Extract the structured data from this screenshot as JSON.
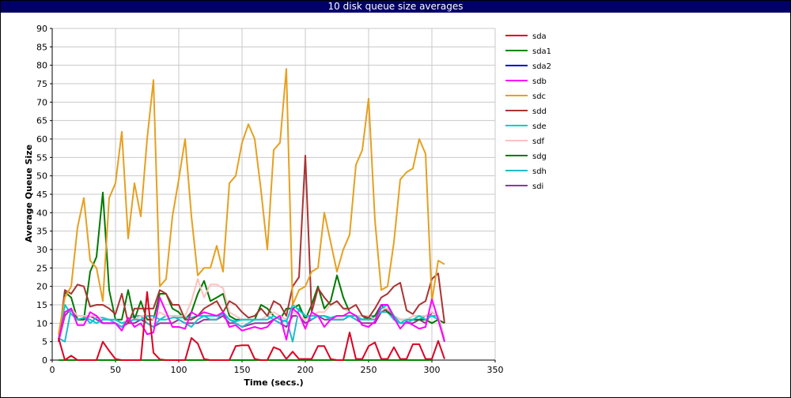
{
  "window": {
    "title": "10 disk queue size averages"
  },
  "chart_data": {
    "type": "line",
    "title": "10 disk queue size averages",
    "xlabel": "Time (secs.)",
    "ylabel": "Average Queue Size",
    "xlim": [
      0,
      350
    ],
    "ylim": [
      0,
      90
    ],
    "xticks": [
      0,
      50,
      100,
      150,
      200,
      250,
      300,
      350
    ],
    "yticks": [
      0,
      5,
      10,
      15,
      20,
      25,
      30,
      35,
      40,
      45,
      50,
      55,
      60,
      65,
      70,
      75,
      80,
      85,
      90
    ],
    "grid": true,
    "legend_position": "right",
    "series": [
      {
        "name": "sda",
        "color": "#dd0022",
        "x": [
          5,
          10,
          15,
          20,
          25,
          30,
          35,
          40,
          45,
          50,
          55,
          60,
          65,
          70,
          75,
          80,
          85,
          90,
          95,
          100,
          105,
          110,
          115,
          120,
          125,
          130,
          135,
          140,
          145,
          150,
          155,
          160,
          165,
          170,
          175,
          180,
          185,
          190,
          195,
          200,
          205,
          210,
          215,
          220,
          225,
          230,
          235,
          240,
          245,
          250,
          255,
          260,
          265,
          270,
          275,
          280,
          285,
          290,
          295,
          300,
          305,
          310
        ],
        "y": [
          6,
          0,
          1.2,
          0,
          0,
          0,
          0,
          5,
          2.5,
          0.3,
          0,
          0,
          0,
          0,
          18.5,
          2,
          0.2,
          0,
          0,
          0,
          0,
          6,
          4.5,
          0.3,
          0,
          0,
          0,
          0,
          3.8,
          4,
          4,
          0.3,
          0,
          0,
          3.5,
          2.8,
          0.3,
          2.3,
          0.3,
          0.3,
          0.3,
          3.8,
          3.8,
          0.3,
          0,
          0,
          7.5,
          0.3,
          0.3,
          3.8,
          4.8,
          0.3,
          0.3,
          3.5,
          0.3,
          0.3,
          4.3,
          4.3,
          0.3,
          0.3,
          5.2,
          0.3
        ]
      },
      {
        "name": "sda1",
        "color": "#008800",
        "x": [
          5,
          300
        ],
        "y": [
          0,
          0
        ]
      },
      {
        "name": "sda2",
        "color": "#0000cc",
        "x": [
          5,
          300
        ],
        "y": [
          0,
          0
        ]
      },
      {
        "name": "sdb",
        "color": "#ff00ff",
        "x": [
          5,
          10,
          15,
          20,
          25,
          30,
          35,
          40,
          45,
          50,
          55,
          60,
          65,
          70,
          75,
          80,
          85,
          90,
          95,
          100,
          105,
          110,
          115,
          120,
          125,
          130,
          135,
          140,
          145,
          150,
          155,
          160,
          165,
          170,
          175,
          180,
          185,
          190,
          195,
          200,
          205,
          210,
          215,
          220,
          225,
          230,
          235,
          240,
          245,
          250,
          255,
          260,
          265,
          270,
          275,
          280,
          285,
          290,
          295,
          300,
          305,
          310
        ],
        "y": [
          5,
          13,
          14,
          9.5,
          9.5,
          13,
          12,
          10,
          10,
          10,
          8,
          11.5,
          9,
          10,
          7,
          7.5,
          17,
          13,
          9,
          9,
          8.5,
          13,
          12,
          13,
          12.5,
          12,
          13,
          9,
          9.5,
          8,
          8.5,
          9,
          8.5,
          9,
          11,
          12,
          5.5,
          14,
          12.5,
          8.5,
          13,
          12,
          9,
          11,
          12,
          12,
          13,
          12,
          9.5,
          9,
          10.5,
          15,
          15,
          11.5,
          8.5,
          10.5,
          9.5,
          8.5,
          9,
          16.5,
          11,
          5
        ]
      },
      {
        "name": "sdc",
        "color": "#e6a020",
        "x": [
          5,
          10,
          15,
          20,
          25,
          30,
          35,
          40,
          45,
          50,
          55,
          60,
          65,
          70,
          75,
          80,
          85,
          90,
          95,
          100,
          105,
          110,
          115,
          120,
          125,
          130,
          135,
          140,
          145,
          150,
          155,
          160,
          165,
          170,
          175,
          180,
          185,
          190,
          195,
          200,
          205,
          210,
          215,
          220,
          225,
          230,
          235,
          240,
          245,
          250,
          255,
          260,
          265,
          270,
          275,
          280,
          285,
          290,
          295,
          300,
          305,
          310
        ],
        "y": [
          7,
          17,
          20,
          36,
          44,
          27,
          25,
          16,
          44,
          48,
          62,
          33,
          48,
          39,
          60,
          76,
          20,
          22,
          39,
          49,
          60,
          39,
          23,
          25,
          25,
          31,
          24,
          48,
          50,
          59,
          64,
          60,
          46,
          30,
          57,
          59,
          79,
          15,
          19,
          20,
          24,
          25,
          40,
          32,
          24,
          30,
          34,
          53,
          57,
          71,
          38,
          19,
          20,
          32,
          49,
          51,
          52,
          60,
          56,
          16,
          27,
          26
        ]
      },
      {
        "name": "sdd",
        "color": "#aa3333",
        "x": [
          5,
          10,
          15,
          20,
          25,
          30,
          35,
          40,
          45,
          50,
          55,
          60,
          65,
          70,
          75,
          80,
          85,
          90,
          95,
          100,
          105,
          110,
          115,
          120,
          125,
          130,
          135,
          140,
          145,
          150,
          155,
          160,
          165,
          170,
          175,
          180,
          185,
          190,
          195,
          200,
          205,
          210,
          215,
          220,
          225,
          230,
          235,
          240,
          245,
          250,
          255,
          260,
          265,
          270,
          275,
          280,
          285,
          290,
          295,
          300,
          305,
          310
        ],
        "y": [
          5,
          19,
          18,
          20.5,
          20,
          14.5,
          15,
          15,
          14,
          12.5,
          18,
          10,
          14,
          14,
          14,
          14,
          19,
          18,
          15,
          15,
          11,
          11,
          12,
          14,
          15,
          16,
          13,
          16,
          15,
          13,
          11.5,
          12,
          14,
          12,
          16,
          15,
          12,
          20,
          22.5,
          55.5,
          13,
          19.5,
          17,
          15,
          16,
          14,
          14,
          15,
          12,
          11.5,
          14,
          17,
          18,
          20,
          21,
          13.5,
          12.5,
          15,
          16,
          22,
          23.5,
          10
        ]
      },
      {
        "name": "sde",
        "color": "#00cccc",
        "x": [
          5,
          10,
          15,
          20,
          25,
          30,
          35,
          40,
          45,
          50,
          55,
          60,
          65,
          70,
          75,
          80,
          85,
          90,
          95,
          100,
          105,
          110,
          115,
          120,
          125,
          130,
          135,
          140,
          145,
          150,
          155,
          160,
          165,
          170,
          175,
          180,
          185,
          190,
          195,
          200,
          205,
          210,
          215,
          220,
          225,
          230,
          235,
          240,
          245,
          250,
          255,
          260,
          265,
          270,
          275,
          280,
          285,
          290,
          295,
          300,
          305,
          310
        ],
        "y": [
          5,
          15,
          12.5,
          11,
          11.5,
          11,
          10,
          11,
          11,
          11,
          10,
          10.5,
          11,
          11,
          12,
          12,
          11,
          11,
          11.5,
          11.5,
          11.5,
          11.5,
          12,
          12,
          12,
          12,
          12.5,
          11,
          10.5,
          11,
          11,
          11,
          11,
          11,
          12,
          11,
          10.5,
          15,
          13.5,
          12,
          12,
          12,
          12,
          11.5,
          12,
          12,
          12,
          12,
          11,
          11,
          11,
          14,
          15,
          12,
          10,
          11,
          11,
          12,
          11,
          12,
          11,
          5
        ]
      },
      {
        "name": "sdf",
        "color": "#ffc0c0",
        "x": [
          5,
          10,
          15,
          20,
          25,
          30,
          35,
          40,
          45,
          50,
          55,
          60,
          65,
          70,
          75,
          80,
          85,
          90,
          95,
          100,
          105,
          110,
          115,
          120,
          125,
          130,
          135,
          140,
          145,
          150,
          155,
          160,
          165,
          170,
          175,
          180,
          185,
          190,
          195,
          200,
          205,
          210,
          215,
          220,
          225,
          230,
          235,
          240,
          245,
          250,
          255,
          260,
          265,
          270,
          275,
          280,
          285,
          290,
          295,
          300,
          305,
          310
        ],
        "y": [
          5,
          13,
          14,
          12,
          12,
          12,
          12,
          11,
          11,
          11,
          10,
          11,
          11,
          12,
          12,
          11,
          13,
          12,
          12,
          12,
          12,
          16,
          22,
          17,
          20.5,
          20.5,
          19.5,
          13,
          12,
          11,
          11,
          11,
          11,
          12,
          13,
          12,
          11,
          13,
          12,
          11,
          12,
          13,
          13,
          15,
          16,
          14,
          13,
          12,
          12,
          12,
          11,
          14,
          14,
          12,
          11,
          11,
          12,
          12,
          12,
          13,
          12,
          6
        ]
      },
      {
        "name": "sdg",
        "color": "#007a00",
        "x": [
          5,
          10,
          15,
          20,
          25,
          30,
          35,
          40,
          45,
          50,
          55,
          60,
          65,
          70,
          75,
          80,
          85,
          90,
          95,
          100,
          105,
          110,
          115,
          120,
          125,
          130,
          135,
          140,
          145,
          150,
          155,
          160,
          165,
          170,
          175,
          180,
          185,
          190,
          195,
          200,
          205,
          210,
          215,
          220,
          225,
          230,
          235,
          240,
          245,
          250,
          255,
          260,
          265,
          270,
          275,
          280,
          285,
          290,
          295,
          300,
          305,
          310
        ],
        "y": [
          5,
          18.5,
          17,
          11,
          11,
          24,
          28,
          45.5,
          19,
          11,
          11,
          19,
          11,
          16,
          11,
          11,
          18,
          18,
          14,
          13,
          11,
          13,
          18,
          21.5,
          16,
          17,
          18,
          12,
          11,
          11,
          11,
          11,
          15,
          14,
          12,
          11,
          14,
          14,
          15,
          11,
          15,
          20,
          14,
          16,
          23,
          17,
          13,
          12,
          12,
          11,
          12,
          15,
          13,
          12,
          11,
          11,
          11,
          11,
          11,
          10,
          11,
          10
        ]
      },
      {
        "name": "sdh",
        "color": "#22bbcc",
        "x": [
          5,
          10,
          15,
          20,
          25,
          30,
          35,
          40,
          45,
          50,
          55,
          60,
          65,
          70,
          75,
          80,
          85,
          90,
          95,
          100,
          105,
          110,
          115,
          120,
          125,
          130,
          135,
          140,
          145,
          150,
          155,
          160,
          165,
          170,
          175,
          180,
          185,
          190,
          195,
          200,
          205,
          210,
          215,
          220,
          225,
          230,
          235,
          240,
          245,
          250,
          255,
          260,
          265,
          270,
          275,
          280,
          285,
          290,
          295,
          300,
          305,
          310
        ],
        "y": [
          6,
          5,
          14,
          12,
          12,
          10,
          11.5,
          11.5,
          11,
          10,
          9,
          11,
          12,
          12,
          10,
          9,
          11,
          12,
          12,
          11,
          10,
          9,
          11,
          12,
          11,
          11,
          13,
          11,
          10,
          9,
          10,
          11,
          11,
          12,
          11,
          10,
          11,
          5,
          14,
          12,
          11,
          12,
          12,
          11,
          11,
          11,
          12,
          11,
          11,
          12,
          12,
          13,
          13,
          11,
          10,
          10,
          11,
          11,
          12,
          12,
          12,
          6
        ]
      },
      {
        "name": "sdi",
        "color": "#993399",
        "x": [
          5,
          10,
          15,
          20,
          25,
          30,
          35,
          40,
          45,
          50,
          55,
          60,
          65,
          70,
          75,
          80,
          85,
          90,
          95,
          100,
          105,
          110,
          115,
          120,
          125,
          130,
          135,
          140,
          145,
          150,
          155,
          160,
          165,
          170,
          175,
          180,
          185,
          190,
          195,
          200,
          205,
          210,
          215,
          220,
          225,
          230,
          235,
          240,
          245,
          250,
          255,
          260,
          265,
          270,
          275,
          280,
          285,
          290,
          295,
          300,
          305,
          310
        ],
        "y": [
          5,
          12,
          14,
          11,
          11,
          12,
          11,
          10,
          10,
          10,
          9,
          10,
          10,
          11,
          10,
          9,
          10,
          10,
          10,
          11,
          10,
          10,
          10,
          11,
          11,
          11,
          12,
          10,
          10,
          9,
          9.5,
          10,
          10,
          10,
          11,
          10,
          9,
          12,
          12,
          10,
          11,
          12,
          11,
          11,
          11,
          11,
          12,
          11,
          10,
          10,
          10,
          13,
          14,
          11,
          10,
          10,
          10,
          11,
          10,
          13,
          12,
          5
        ]
      }
    ]
  }
}
